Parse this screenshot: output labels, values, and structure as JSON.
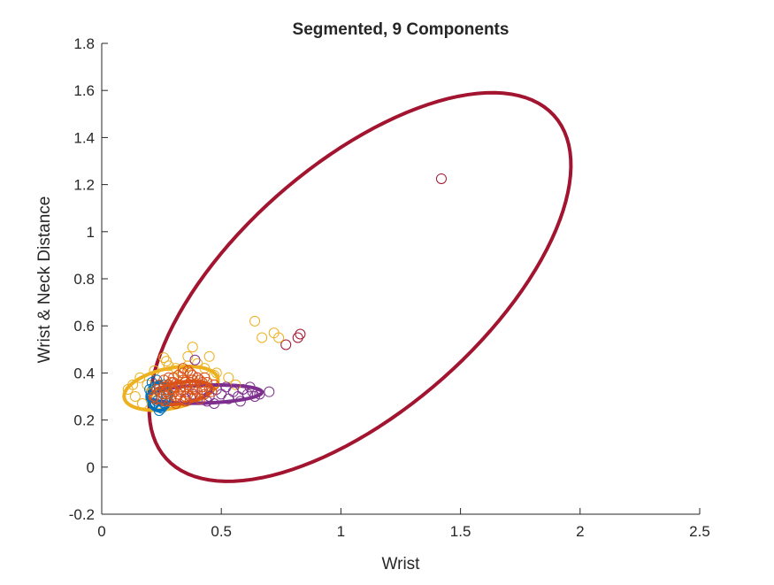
{
  "chart_data": {
    "type": "scatter",
    "title": "Segmented, 9 Components",
    "xlabel": "Wrist",
    "ylabel": "Wrist & Neck Distance",
    "xlim": [
      0,
      2.5
    ],
    "ylim": [
      -0.2,
      1.8
    ],
    "xticks": [
      0,
      0.5,
      1,
      1.5,
      2,
      2.5
    ],
    "xtick_labels": [
      "0",
      "0.5",
      "1",
      "1.5",
      "2",
      "2.5"
    ],
    "yticks": [
      -0.2,
      0,
      0.2,
      0.4,
      0.6,
      0.8,
      1,
      1.2,
      1.4,
      1.6,
      1.8
    ],
    "ytick_labels": [
      "-0.2",
      "0",
      "0.2",
      "0.4",
      "0.6",
      "0.8",
      "1",
      "1.2",
      "1.4",
      "1.6",
      "1.8"
    ],
    "grid": false,
    "legend": "none",
    "ellipses": [
      {
        "color": "#A2142F",
        "cx": 1.08,
        "cy": 0.765,
        "rx": 1.09,
        "ry": 0.52,
        "angle_deg": 42
      },
      {
        "color": "#EDB120",
        "cx": 0.29,
        "cy": 0.335,
        "rx": 0.2,
        "ry": 0.085,
        "angle_deg": 12
      },
      {
        "color": "#7E2F8E",
        "cx": 0.43,
        "cy": 0.31,
        "rx": 0.24,
        "ry": 0.038,
        "angle_deg": 2
      },
      {
        "color": "#0072BD",
        "cx": 0.24,
        "cy": 0.3,
        "rx": 0.05,
        "ry": 0.06,
        "angle_deg": 0
      },
      {
        "color": "#D95319",
        "cx": 0.33,
        "cy": 0.315,
        "rx": 0.13,
        "ry": 0.045,
        "angle_deg": 10
      }
    ],
    "series": [
      {
        "color": "#A2142F",
        "points": [
          [
            1.42,
            1.225
          ],
          [
            0.82,
            0.55
          ],
          [
            0.83,
            0.565
          ],
          [
            0.77,
            0.52
          ]
        ]
      },
      {
        "color": "#EDB120",
        "points": [
          [
            0.64,
            0.62
          ],
          [
            0.67,
            0.55
          ],
          [
            0.72,
            0.57
          ],
          [
            0.74,
            0.55
          ],
          [
            0.38,
            0.51
          ],
          [
            0.36,
            0.47
          ],
          [
            0.45,
            0.47
          ],
          [
            0.27,
            0.45
          ],
          [
            0.26,
            0.465
          ],
          [
            0.28,
            0.43
          ],
          [
            0.31,
            0.42
          ],
          [
            0.33,
            0.4
          ],
          [
            0.22,
            0.41
          ],
          [
            0.16,
            0.38
          ],
          [
            0.13,
            0.35
          ],
          [
            0.11,
            0.33
          ],
          [
            0.14,
            0.3
          ],
          [
            0.17,
            0.27
          ],
          [
            0.19,
            0.35
          ],
          [
            0.21,
            0.32
          ],
          [
            0.47,
            0.39
          ],
          [
            0.48,
            0.4
          ],
          [
            0.53,
            0.38
          ],
          [
            0.56,
            0.35
          ],
          [
            0.36,
            0.43
          ],
          [
            0.4,
            0.44
          ],
          [
            0.43,
            0.42
          ]
        ]
      },
      {
        "color": "#7E2F8E",
        "points": [
          [
            0.39,
            0.455
          ],
          [
            0.4,
            0.38
          ],
          [
            0.45,
            0.3
          ],
          [
            0.48,
            0.33
          ],
          [
            0.5,
            0.31
          ],
          [
            0.52,
            0.34
          ],
          [
            0.55,
            0.32
          ],
          [
            0.57,
            0.3
          ],
          [
            0.59,
            0.33
          ],
          [
            0.61,
            0.31
          ],
          [
            0.62,
            0.34
          ],
          [
            0.63,
            0.32
          ],
          [
            0.64,
            0.3
          ],
          [
            0.66,
            0.31
          ],
          [
            0.7,
            0.32
          ],
          [
            0.44,
            0.28
          ],
          [
            0.47,
            0.27
          ],
          [
            0.53,
            0.29
          ],
          [
            0.58,
            0.28
          ],
          [
            0.35,
            0.29
          ],
          [
            0.38,
            0.31
          ],
          [
            0.42,
            0.33
          ]
        ]
      },
      {
        "color": "#0072BD",
        "points": [
          [
            0.21,
            0.36
          ],
          [
            0.22,
            0.34
          ],
          [
            0.23,
            0.37
          ],
          [
            0.24,
            0.32
          ],
          [
            0.25,
            0.3
          ],
          [
            0.23,
            0.28
          ],
          [
            0.24,
            0.26
          ],
          [
            0.25,
            0.25
          ],
          [
            0.22,
            0.27
          ],
          [
            0.26,
            0.35
          ],
          [
            0.27,
            0.31
          ],
          [
            0.21,
            0.3
          ],
          [
            0.2,
            0.33
          ],
          [
            0.26,
            0.27
          ],
          [
            0.24,
            0.24
          ],
          [
            0.27,
            0.29
          ]
        ]
      },
      {
        "color": "#D95319",
        "points": [
          [
            0.22,
            0.3
          ],
          [
            0.24,
            0.32
          ],
          [
            0.26,
            0.34
          ],
          [
            0.28,
            0.31
          ],
          [
            0.29,
            0.36
          ],
          [
            0.3,
            0.33
          ],
          [
            0.31,
            0.3
          ],
          [
            0.32,
            0.35
          ],
          [
            0.33,
            0.32
          ],
          [
            0.34,
            0.37
          ],
          [
            0.35,
            0.34
          ],
          [
            0.36,
            0.31
          ],
          [
            0.37,
            0.36
          ],
          [
            0.38,
            0.33
          ],
          [
            0.39,
            0.35
          ],
          [
            0.4,
            0.32
          ],
          [
            0.41,
            0.37
          ],
          [
            0.42,
            0.34
          ],
          [
            0.43,
            0.31
          ],
          [
            0.44,
            0.36
          ],
          [
            0.45,
            0.33
          ],
          [
            0.27,
            0.28
          ],
          [
            0.29,
            0.29
          ],
          [
            0.31,
            0.27
          ],
          [
            0.33,
            0.29
          ],
          [
            0.35,
            0.28
          ],
          [
            0.37,
            0.3
          ],
          [
            0.25,
            0.29
          ],
          [
            0.27,
            0.33
          ],
          [
            0.3,
            0.38
          ],
          [
            0.32,
            0.39
          ],
          [
            0.34,
            0.4
          ],
          [
            0.36,
            0.41
          ],
          [
            0.38,
            0.39
          ],
          [
            0.4,
            0.38
          ],
          [
            0.42,
            0.36
          ],
          [
            0.28,
            0.35
          ],
          [
            0.3,
            0.32
          ],
          [
            0.33,
            0.34
          ],
          [
            0.36,
            0.35
          ],
          [
            0.39,
            0.3
          ],
          [
            0.41,
            0.29
          ],
          [
            0.46,
            0.32
          ],
          [
            0.47,
            0.35
          ],
          [
            0.23,
            0.33
          ],
          [
            0.26,
            0.31
          ],
          [
            0.29,
            0.33
          ],
          [
            0.31,
            0.34
          ],
          [
            0.35,
            0.36
          ],
          [
            0.38,
            0.37
          ],
          [
            0.34,
            0.42
          ],
          [
            0.37,
            0.4
          ],
          [
            0.24,
            0.35
          ],
          [
            0.3,
            0.36
          ],
          [
            0.43,
            0.38
          ],
          [
            0.32,
            0.31
          ],
          [
            0.28,
            0.38
          ],
          [
            0.26,
            0.37
          ],
          [
            0.35,
            0.3
          ],
          [
            0.39,
            0.33
          ]
        ]
      }
    ]
  }
}
